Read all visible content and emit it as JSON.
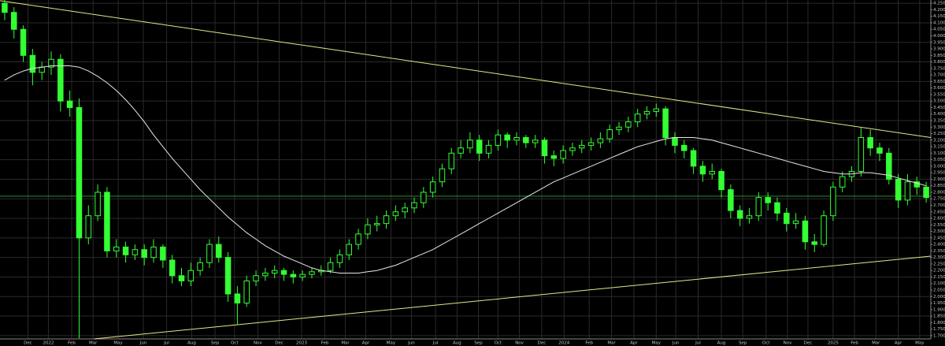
{
  "chart_data": {
    "type": "candlestick",
    "color": "#33ff33",
    "ma_color": "#e8e8e8",
    "trend_color": "#e6e68a",
    "hline_color": "#2e8b2e",
    "grid": true,
    "xlim": [
      -0.5,
      99.5
    ],
    "ylim": [
      1.675,
      4.275
    ],
    "xticks": [
      {
        "value": 2.5,
        "label": "Dec"
      },
      {
        "value": 4.7,
        "label": "2022"
      },
      {
        "value": 7.2,
        "label": "Feb"
      },
      {
        "value": 9.5,
        "label": "Mar"
      },
      {
        "value": 12.2,
        "label": "May"
      },
      {
        "value": 14.9,
        "label": "Jun"
      },
      {
        "value": 17.4,
        "label": "Jul"
      },
      {
        "value": 20.1,
        "label": "Aug"
      },
      {
        "value": 22.6,
        "label": "Sep"
      },
      {
        "value": 24.7,
        "label": "Oct"
      },
      {
        "value": 27.2,
        "label": "Nov"
      },
      {
        "value": 29.5,
        "label": "Dec"
      },
      {
        "value": 31.9,
        "label": "2023"
      },
      {
        "value": 34.4,
        "label": "Feb"
      },
      {
        "value": 36.6,
        "label": "Mar"
      },
      {
        "value": 38.8,
        "label": "Apr"
      },
      {
        "value": 41.5,
        "label": "May"
      },
      {
        "value": 43.7,
        "label": "Jun"
      },
      {
        "value": 46.3,
        "label": "Jul"
      },
      {
        "value": 48.6,
        "label": "Aug"
      },
      {
        "value": 50.9,
        "label": "Sep"
      },
      {
        "value": 53,
        "label": "Oct"
      },
      {
        "value": 55.3,
        "label": "Nov"
      },
      {
        "value": 57.7,
        "label": "Dec"
      },
      {
        "value": 60.1,
        "label": "2024"
      },
      {
        "value": 62.8,
        "label": "Feb"
      },
      {
        "value": 65.2,
        "label": "Mar"
      },
      {
        "value": 67.6,
        "label": "Apr"
      },
      {
        "value": 70,
        "label": "May"
      },
      {
        "value": 72.1,
        "label": "Jun"
      },
      {
        "value": 74.5,
        "label": "Jul"
      },
      {
        "value": 77,
        "label": "Aug"
      },
      {
        "value": 79.3,
        "label": "Sep"
      },
      {
        "value": 81.8,
        "label": "Oct"
      },
      {
        "value": 84.1,
        "label": "Nov"
      },
      {
        "value": 86.3,
        "label": "Dec"
      },
      {
        "value": 89,
        "label": "2025"
      },
      {
        "value": 91.3,
        "label": "Feb"
      },
      {
        "value": 93.6,
        "label": "Mar"
      },
      {
        "value": 96,
        "label": "Apr"
      },
      {
        "value": 98.3,
        "label": "May"
      }
    ],
    "yticks": [
      {
        "value": 4.25,
        "label": "4.250"
      },
      {
        "value": 4.2,
        "label": "4.200"
      },
      {
        "value": 4.15,
        "label": "4.150"
      },
      {
        "value": 4.1,
        "label": "4.100"
      },
      {
        "value": 4.05,
        "label": "4.050"
      },
      {
        "value": 4.0,
        "label": "4.000"
      },
      {
        "value": 3.95,
        "label": "3.950"
      },
      {
        "value": 3.9,
        "label": "3.900"
      },
      {
        "value": 3.85,
        "label": "3.850"
      },
      {
        "value": 3.8,
        "label": "3.800"
      },
      {
        "value": 3.75,
        "label": "3.750"
      },
      {
        "value": 3.7,
        "label": "3.700"
      },
      {
        "value": 3.65,
        "label": "3.650"
      },
      {
        "value": 3.6,
        "label": "3.600"
      },
      {
        "value": 3.55,
        "label": "3.550"
      },
      {
        "value": 3.5,
        "label": "3.500"
      },
      {
        "value": 3.45,
        "label": "3.450"
      },
      {
        "value": 3.4,
        "label": "3.400"
      },
      {
        "value": 3.35,
        "label": "3.350"
      },
      {
        "value": 3.3,
        "label": "3.300"
      },
      {
        "value": 3.25,
        "label": "3.250"
      },
      {
        "value": 3.2,
        "label": "3.200"
      },
      {
        "value": 3.15,
        "label": "3.150"
      },
      {
        "value": 3.1,
        "label": "3.100"
      },
      {
        "value": 3.05,
        "label": "3.050"
      },
      {
        "value": 3.0,
        "label": "3.000"
      },
      {
        "value": 2.95,
        "label": "2.950"
      },
      {
        "value": 2.9,
        "label": "2.900"
      },
      {
        "value": 2.85,
        "label": "2.850"
      },
      {
        "value": 2.8,
        "label": "2.800"
      },
      {
        "value": 2.75,
        "label": "2.750"
      },
      {
        "value": 2.7,
        "label": "2.700"
      },
      {
        "value": 2.65,
        "label": "2.650"
      },
      {
        "value": 2.6,
        "label": "2.600"
      },
      {
        "value": 2.55,
        "label": "2.550"
      },
      {
        "value": 2.5,
        "label": "2.500"
      },
      {
        "value": 2.45,
        "label": "2.450"
      },
      {
        "value": 2.4,
        "label": "2.400"
      },
      {
        "value": 2.35,
        "label": "2.350"
      },
      {
        "value": 2.3,
        "label": "2.300"
      },
      {
        "value": 2.25,
        "label": "2.250"
      },
      {
        "value": 2.2,
        "label": "2.200"
      },
      {
        "value": 2.15,
        "label": "2.150"
      },
      {
        "value": 2.1,
        "label": "2.100"
      },
      {
        "value": 2.05,
        "label": "2.050"
      },
      {
        "value": 2.0,
        "label": "2.000"
      },
      {
        "value": 1.95,
        "label": "1.950"
      },
      {
        "value": 1.9,
        "label": "1.900"
      },
      {
        "value": 1.85,
        "label": "1.850"
      },
      {
        "value": 1.8,
        "label": "1.800"
      },
      {
        "value": 1.75,
        "label": "1.750"
      },
      {
        "value": 1.7,
        "label": "1.700"
      }
    ],
    "ohlc": [
      [
        4.25,
        4.28,
        4.12,
        4.18
      ],
      [
        4.18,
        4.22,
        3.98,
        4.05
      ],
      [
        4.05,
        4.08,
        3.8,
        3.85
      ],
      [
        3.85,
        3.9,
        3.62,
        3.72
      ],
      [
        3.72,
        3.8,
        3.66,
        3.76
      ],
      [
        3.76,
        3.88,
        3.7,
        3.82
      ],
      [
        3.82,
        3.86,
        3.42,
        3.5
      ],
      [
        3.5,
        3.58,
        3.38,
        3.45
      ],
      [
        3.45,
        3.52,
        1.68,
        2.45
      ],
      [
        2.45,
        2.7,
        2.4,
        2.62
      ],
      [
        2.62,
        2.86,
        2.58,
        2.8
      ],
      [
        2.8,
        2.84,
        2.3,
        2.35
      ],
      [
        2.35,
        2.44,
        2.3,
        2.38
      ],
      [
        2.38,
        2.42,
        2.26,
        2.32
      ],
      [
        2.32,
        2.4,
        2.28,
        2.36
      ],
      [
        2.36,
        2.4,
        2.24,
        2.3
      ],
      [
        2.3,
        2.44,
        2.26,
        2.38
      ],
      [
        2.38,
        2.4,
        2.22,
        2.28
      ],
      [
        2.28,
        2.32,
        2.1,
        2.16
      ],
      [
        2.16,
        2.22,
        2.08,
        2.12
      ],
      [
        2.12,
        2.26,
        2.08,
        2.2
      ],
      [
        2.2,
        2.3,
        2.16,
        2.26
      ],
      [
        2.26,
        2.44,
        2.22,
        2.4
      ],
      [
        2.4,
        2.46,
        2.26,
        2.3
      ],
      [
        2.3,
        2.34,
        1.96,
        2.02
      ],
      [
        2.02,
        2.08,
        1.78,
        1.95
      ],
      [
        1.95,
        2.16,
        1.92,
        2.12
      ],
      [
        2.12,
        2.2,
        2.08,
        2.16
      ],
      [
        2.16,
        2.22,
        2.12,
        2.18
      ],
      [
        2.18,
        2.24,
        2.14,
        2.2
      ],
      [
        2.2,
        2.22,
        2.12,
        2.17
      ],
      [
        2.17,
        2.2,
        2.1,
        2.15
      ],
      [
        2.15,
        2.2,
        2.12,
        2.17
      ],
      [
        2.17,
        2.22,
        2.14,
        2.19
      ],
      [
        2.19,
        2.24,
        2.16,
        2.2
      ],
      [
        2.2,
        2.3,
        2.18,
        2.26
      ],
      [
        2.26,
        2.36,
        2.22,
        2.32
      ],
      [
        2.32,
        2.44,
        2.28,
        2.4
      ],
      [
        2.4,
        2.52,
        2.36,
        2.48
      ],
      [
        2.48,
        2.6,
        2.44,
        2.55
      ],
      [
        2.55,
        2.62,
        2.5,
        2.56
      ],
      [
        2.56,
        2.66,
        2.52,
        2.62
      ],
      [
        2.62,
        2.7,
        2.58,
        2.65
      ],
      [
        2.65,
        2.72,
        2.6,
        2.68
      ],
      [
        2.68,
        2.76,
        2.64,
        2.72
      ],
      [
        2.72,
        2.84,
        2.68,
        2.8
      ],
      [
        2.8,
        2.92,
        2.76,
        2.88
      ],
      [
        2.88,
        3.02,
        2.84,
        2.98
      ],
      [
        2.98,
        3.14,
        2.94,
        3.1
      ],
      [
        3.1,
        3.2,
        3.06,
        3.14
      ],
      [
        3.14,
        3.26,
        3.1,
        3.2
      ],
      [
        3.2,
        3.24,
        3.04,
        3.1
      ],
      [
        3.1,
        3.2,
        3.06,
        3.16
      ],
      [
        3.16,
        3.28,
        3.12,
        3.24
      ],
      [
        3.24,
        3.26,
        3.14,
        3.2
      ],
      [
        3.2,
        3.26,
        3.16,
        3.22
      ],
      [
        3.22,
        3.24,
        3.14,
        3.18
      ],
      [
        3.18,
        3.24,
        3.14,
        3.2
      ],
      [
        3.2,
        3.22,
        3.02,
        3.08
      ],
      [
        3.08,
        3.12,
        3.0,
        3.06
      ],
      [
        3.06,
        3.16,
        3.02,
        3.12
      ],
      [
        3.12,
        3.18,
        3.08,
        3.14
      ],
      [
        3.14,
        3.2,
        3.1,
        3.16
      ],
      [
        3.16,
        3.22,
        3.12,
        3.18
      ],
      [
        3.18,
        3.26,
        3.14,
        3.21
      ],
      [
        3.21,
        3.32,
        3.18,
        3.28
      ],
      [
        3.28,
        3.34,
        3.24,
        3.3
      ],
      [
        3.3,
        3.38,
        3.26,
        3.34
      ],
      [
        3.34,
        3.44,
        3.3,
        3.4
      ],
      [
        3.4,
        3.46,
        3.36,
        3.42
      ],
      [
        3.42,
        3.48,
        3.38,
        3.44
      ],
      [
        3.44,
        3.46,
        3.16,
        3.22
      ],
      [
        3.22,
        3.26,
        3.1,
        3.16
      ],
      [
        3.16,
        3.2,
        3.06,
        3.12
      ],
      [
        3.12,
        3.14,
        2.94,
        3.0
      ],
      [
        3.0,
        3.04,
        2.88,
        2.94
      ],
      [
        2.94,
        3.02,
        2.9,
        2.96
      ],
      [
        2.96,
        2.98,
        2.76,
        2.82
      ],
      [
        2.82,
        2.86,
        2.6,
        2.66
      ],
      [
        2.66,
        2.7,
        2.54,
        2.6
      ],
      [
        2.6,
        2.68,
        2.56,
        2.62
      ],
      [
        2.62,
        2.8,
        2.58,
        2.76
      ],
      [
        2.76,
        2.8,
        2.66,
        2.72
      ],
      [
        2.72,
        2.76,
        2.58,
        2.64
      ],
      [
        2.64,
        2.68,
        2.5,
        2.56
      ],
      [
        2.56,
        2.64,
        2.52,
        2.58
      ],
      [
        2.58,
        2.62,
        2.36,
        2.42
      ],
      [
        2.42,
        2.48,
        2.34,
        2.4
      ],
      [
        2.4,
        2.66,
        2.38,
        2.62
      ],
      [
        2.62,
        2.88,
        2.58,
        2.84
      ],
      [
        2.84,
        2.96,
        2.8,
        2.92
      ],
      [
        2.92,
        3.0,
        2.88,
        2.96
      ],
      [
        2.96,
        3.3,
        2.92,
        3.22
      ],
      [
        3.22,
        3.28,
        3.08,
        3.14
      ],
      [
        3.14,
        3.18,
        3.04,
        3.1
      ],
      [
        3.1,
        3.14,
        2.86,
        2.9
      ],
      [
        2.9,
        2.94,
        2.68,
        2.74
      ],
      [
        2.74,
        2.94,
        2.7,
        2.88
      ],
      [
        2.88,
        2.92,
        2.78,
        2.84
      ],
      [
        2.84,
        2.88,
        2.72,
        2.76
      ]
    ],
    "ma": [
      3.66,
      3.7,
      3.73,
      3.75,
      3.76,
      3.77,
      3.77,
      3.77,
      3.76,
      3.73,
      3.69,
      3.64,
      3.58,
      3.51,
      3.43,
      3.34,
      3.24,
      3.15,
      3.06,
      2.98,
      2.9,
      2.82,
      2.75,
      2.68,
      2.61,
      2.55,
      2.49,
      2.44,
      2.39,
      2.35,
      2.31,
      2.28,
      2.25,
      2.22,
      2.2,
      2.19,
      2.18,
      2.18,
      2.18,
      2.19,
      2.2,
      2.22,
      2.24,
      2.27,
      2.3,
      2.33,
      2.36,
      2.4,
      2.44,
      2.48,
      2.52,
      2.56,
      2.6,
      2.64,
      2.68,
      2.72,
      2.76,
      2.8,
      2.84,
      2.88,
      2.91,
      2.94,
      2.97,
      3.0,
      3.03,
      3.06,
      3.09,
      3.12,
      3.15,
      3.17,
      3.19,
      3.21,
      3.22,
      3.22,
      3.22,
      3.21,
      3.2,
      3.18,
      3.16,
      3.14,
      3.12,
      3.1,
      3.08,
      3.06,
      3.04,
      3.02,
      3.0,
      2.98,
      2.96,
      2.95,
      2.94,
      2.94,
      2.95,
      2.95,
      2.94,
      2.93,
      2.91,
      2.89,
      2.87,
      2.85
    ],
    "trendlines": [
      {
        "x": [
          -0.5,
          99.5
        ],
        "y": [
          4.27,
          3.22
        ]
      },
      {
        "x": [
          9.6,
          99.5
        ],
        "y": [
          1.675,
          2.31
        ]
      }
    ],
    "hline": 2.77
  }
}
